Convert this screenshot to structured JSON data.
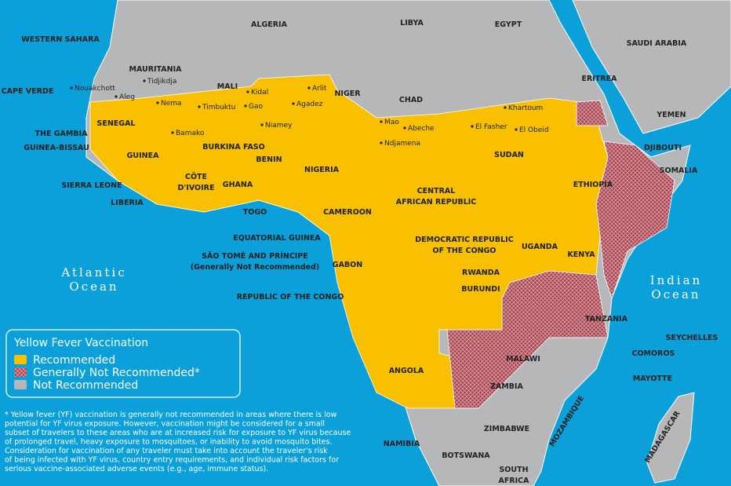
{
  "legend": {
    "title": "Yellow Fever Vaccination",
    "items": [
      {
        "label": "Recommended",
        "color": "#f8c000"
      },
      {
        "label": "Generally Not Recommended*",
        "color": "#a8404e"
      },
      {
        "label": "Not Recommended",
        "color": "#b6b7b9"
      }
    ]
  },
  "oceans": [
    {
      "lines": [
        "Atlantic",
        "Ocean"
      ]
    },
    {
      "lines": [
        "Indian",
        "Ocean"
      ]
    }
  ],
  "countries": [
    {
      "lines": [
        "ALGERIA"
      ]
    },
    {
      "lines": [
        "LIBYA"
      ]
    },
    {
      "lines": [
        "EGYPT"
      ]
    },
    {
      "lines": [
        "SAUDI ARABIA"
      ]
    },
    {
      "lines": [
        "WESTERN SAHARA"
      ]
    },
    {
      "lines": [
        "MAURITANIA"
      ]
    },
    {
      "lines": [
        "MALI"
      ]
    },
    {
      "lines": [
        "NIGER"
      ]
    },
    {
      "lines": [
        "CHAD"
      ]
    },
    {
      "lines": [
        "CAPE VERDE"
      ]
    },
    {
      "lines": [
        "SENEGAL"
      ]
    },
    {
      "lines": [
        "THE GAMBIA"
      ]
    },
    {
      "lines": [
        "GUINEA-BISSAU"
      ]
    },
    {
      "lines": [
        "GUINEA"
      ]
    },
    {
      "lines": [
        "SIERRA LEONE"
      ]
    },
    {
      "lines": [
        "LIBERIA"
      ]
    },
    {
      "lines": [
        "CÔTE",
        "D'IVOIRE"
      ]
    },
    {
      "lines": [
        "BURKINA FASO"
      ]
    },
    {
      "lines": [
        "GHANA"
      ]
    },
    {
      "lines": [
        "TOGO"
      ]
    },
    {
      "lines": [
        "BENIN"
      ]
    },
    {
      "lines": [
        "NIGERIA"
      ]
    },
    {
      "lines": [
        "EQUATORIAL GUINEA"
      ]
    },
    {
      "lines": [
        "SÃO TOMÉ AND PRÍNCIPE",
        "(Generally Not Recommended)"
      ]
    },
    {
      "lines": [
        "CAMEROON"
      ]
    },
    {
      "lines": [
        "GABON"
      ]
    },
    {
      "lines": [
        "REPUBLIC OF THE CONGO"
      ]
    },
    {
      "lines": [
        "CENTRAL",
        "AFRICAN REPUBLIC"
      ]
    },
    {
      "lines": [
        "SUDAN"
      ]
    },
    {
      "lines": [
        "ERITREA"
      ]
    },
    {
      "lines": [
        "YEMEN"
      ]
    },
    {
      "lines": [
        "DJIBOUTI"
      ]
    },
    {
      "lines": [
        "SOMALIA"
      ]
    },
    {
      "lines": [
        "ETHIOPIA"
      ]
    },
    {
      "lines": [
        "DEMOCRATIC REPUBLIC",
        "OF THE CONGO"
      ]
    },
    {
      "lines": [
        "UGANDA"
      ]
    },
    {
      "lines": [
        "KENYA"
      ]
    },
    {
      "lines": [
        "RWANDA"
      ]
    },
    {
      "lines": [
        "BURUNDI"
      ]
    },
    {
      "lines": [
        "TANZANIA"
      ]
    },
    {
      "lines": [
        "SEYCHELLES"
      ]
    },
    {
      "lines": [
        "COMOROS"
      ]
    },
    {
      "lines": [
        "MALAWI"
      ]
    },
    {
      "lines": [
        "MAYOTTE"
      ]
    },
    {
      "lines": [
        "ZAMBIA"
      ]
    },
    {
      "lines": [
        "ANGOLA"
      ]
    },
    {
      "lines": [
        "MOZAMBIQUE"
      ]
    },
    {
      "lines": [
        "ZIMBABWE"
      ]
    },
    {
      "lines": [
        "MADAGASCAR"
      ]
    },
    {
      "lines": [
        "NAMIBIA"
      ]
    },
    {
      "lines": [
        "BOTSWANA"
      ]
    },
    {
      "lines": [
        "SOUTH",
        "AFRICA"
      ]
    }
  ],
  "cities": [
    "Tidjikdja",
    "Nouakchott",
    "Aleg",
    "Nema",
    "Timbuktu",
    "Gao",
    "Kidal",
    "Arlit",
    "Agadez",
    "Niamey",
    "Bamako",
    "Mao",
    "Abeche",
    "Ndjamena",
    "Khartoum",
    "El Fasher",
    "El Obeid"
  ],
  "footnote": [
    "* Yellow fever (YF) vaccination is generally not recommended in areas where there is low",
    "potential for YF virus exposure. However, vaccination might be considered for a small",
    "subset of travelers to these areas who are at increased risk for exposure to YF virus because",
    "of prolonged travel, heavy exposure to mosquitoes, or inability to avoid mosquito bites.",
    "Consideration for vaccination of any traveler must take into account the traveler's risk",
    "of being infected with YF virus, country entry requirements, and individual risk factors for",
    "serious vaccine-associated adverse events (e.g., age, immune status)."
  ]
}
